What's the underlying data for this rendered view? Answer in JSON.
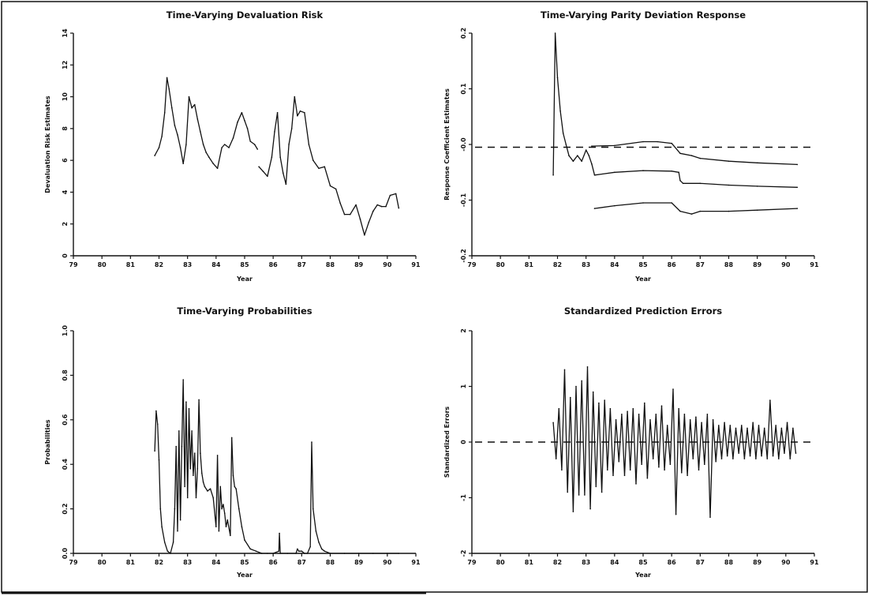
{
  "chart_data": [
    {
      "type": "line",
      "title": "Time-Varying Devaluation Risk",
      "xlabel": "Year",
      "ylabel": "Devaluation Risk Estimates",
      "xlim": [
        79,
        91
      ],
      "ylim": [
        0,
        14
      ],
      "xticks": [
        "79",
        "80",
        "81",
        "82",
        "83",
        "84",
        "85",
        "86",
        "87",
        "88",
        "89",
        "90",
        "91"
      ],
      "yticks": [
        "0",
        "2",
        "4",
        "6",
        "8",
        "10",
        "12",
        "14"
      ],
      "series": [
        {
          "x": [
            81.85,
            82.0,
            82.1,
            82.2,
            82.28,
            82.35,
            82.45,
            82.55,
            82.65,
            82.75,
            82.85,
            82.95,
            83.05,
            83.15,
            83.25,
            83.35,
            83.45,
            83.55,
            83.65,
            83.75,
            83.9,
            84.05,
            84.2,
            84.3,
            84.45,
            84.6,
            84.75,
            84.9,
            85.0,
            85.1,
            85.2,
            85.35,
            85.45
          ],
          "y": [
            6.3,
            6.8,
            7.5,
            9.0,
            11.2,
            10.5,
            9.3,
            8.2,
            7.6,
            6.8,
            5.8,
            7.0,
            10.0,
            9.3,
            9.5,
            8.6,
            7.8,
            7.0,
            6.5,
            6.2,
            5.8,
            5.5,
            6.8,
            7.0,
            6.8,
            7.4,
            8.4,
            9.0,
            8.5,
            8.0,
            7.2,
            7.0,
            6.7
          ]
        },
        {
          "x": [
            85.5,
            85.65,
            85.8,
            85.95,
            86.05,
            86.15,
            86.25,
            86.35,
            86.45,
            86.55,
            86.65,
            86.75,
            86.85,
            86.95,
            87.1,
            87.25,
            87.4,
            87.6,
            87.8,
            88.0,
            88.2,
            88.35,
            88.5,
            88.7,
            88.9,
            89.05,
            89.2,
            89.35,
            89.5,
            89.65,
            89.8,
            89.95,
            90.1,
            90.3,
            90.4
          ],
          "y": [
            5.6,
            5.3,
            5.0,
            6.2,
            7.8,
            9.0,
            6.2,
            5.2,
            4.5,
            7.0,
            8.0,
            10.0,
            8.8,
            9.1,
            9.0,
            7.0,
            6.0,
            5.5,
            5.6,
            4.4,
            4.2,
            3.3,
            2.6,
            2.6,
            3.2,
            2.3,
            1.3,
            2.1,
            2.8,
            3.2,
            3.1,
            3.1,
            3.8,
            3.9,
            3.0
          ]
        }
      ]
    },
    {
      "type": "line",
      "title": "Time-Varying Parity Deviation Response",
      "xlabel": "Year",
      "ylabel": "Response Coefficient Estimates",
      "xlim": [
        79,
        91
      ],
      "ylim": [
        -0.2,
        0.2
      ],
      "xticks": [
        "79",
        "80",
        "81",
        "82",
        "83",
        "84",
        "85",
        "86",
        "87",
        "88",
        "89",
        "90",
        "91"
      ],
      "yticks": [
        "-0.2",
        "-0.1",
        "-0.0",
        "0.1",
        "0.2"
      ],
      "reference_line_y": -0.005,
      "series": [
        {
          "x": [
            81.85,
            81.92,
            82.0,
            82.1,
            82.2,
            82.3,
            82.4,
            82.55,
            82.7,
            82.85,
            83.0,
            83.1,
            83.2,
            83.3,
            84.0,
            85.0,
            86.0,
            86.25,
            86.3,
            86.4,
            87.0,
            88.0,
            89.0,
            90.4
          ],
          "y": [
            -0.055,
            0.2,
            0.12,
            0.06,
            0.02,
            0.0,
            -0.02,
            -0.03,
            -0.02,
            -0.03,
            -0.01,
            -0.02,
            -0.035,
            -0.055,
            -0.05,
            -0.047,
            -0.048,
            -0.05,
            -0.065,
            -0.07,
            -0.07,
            -0.073,
            -0.075,
            -0.077
          ]
        },
        {
          "x": [
            83.2,
            84.0,
            85.0,
            85.5,
            86.0,
            86.3,
            86.7,
            87.0,
            88.0,
            89.0,
            90.4
          ],
          "y": [
            -0.003,
            -0.002,
            0.005,
            0.005,
            0.002,
            -0.016,
            -0.02,
            -0.025,
            -0.03,
            -0.033,
            -0.036
          ]
        },
        {
          "x": [
            83.3,
            84.0,
            85.0,
            86.0,
            86.3,
            86.7,
            87.0,
            88.0,
            89.0,
            90.4
          ],
          "y": [
            -0.115,
            -0.11,
            -0.105,
            -0.105,
            -0.12,
            -0.125,
            -0.12,
            -0.12,
            -0.118,
            -0.115
          ]
        }
      ]
    },
    {
      "type": "line",
      "title": "Time-Varying Probabilities",
      "xlabel": "Year",
      "ylabel": "Probabilities",
      "xlim": [
        79,
        91
      ],
      "ylim": [
        0,
        1.0
      ],
      "xticks": [
        "79",
        "80",
        "81",
        "82",
        "83",
        "84",
        "85",
        "86",
        "87",
        "88",
        "89",
        "90",
        "91"
      ],
      "yticks": [
        "0.0",
        "0.2",
        "0.4",
        "0.6",
        "0.8",
        "1.0"
      ],
      "series": [
        {
          "x": [
            81.85,
            81.9,
            81.95,
            82.0,
            82.05,
            82.1,
            82.2,
            82.3,
            82.4,
            82.5,
            82.55,
            82.6,
            82.65,
            82.7,
            82.75,
            82.8,
            82.85,
            82.9,
            82.95,
            83.0,
            83.05,
            83.1,
            83.15,
            83.2,
            83.25,
            83.3,
            83.35,
            83.4,
            83.45,
            83.5,
            83.55,
            83.6,
            83.7,
            83.8,
            83.9,
            84.0,
            84.05,
            84.1,
            84.15,
            84.2,
            84.25,
            84.3,
            84.35,
            84.4,
            84.5,
            84.55,
            84.6,
            84.65,
            84.7,
            84.8,
            84.9,
            85.0,
            85.2,
            85.4,
            85.6,
            85.8,
            86.0,
            86.2,
            86.22,
            86.25,
            86.5,
            86.8,
            86.85,
            86.9,
            87.0,
            87.1,
            87.2,
            87.3,
            87.35,
            87.4,
            87.5,
            87.6,
            87.7,
            87.8,
            88.0,
            88.5,
            89.0,
            89.5,
            90.0,
            90.4
          ],
          "y": [
            0.46,
            0.64,
            0.58,
            0.42,
            0.2,
            0.12,
            0.05,
            0.01,
            0.0,
            0.05,
            0.2,
            0.48,
            0.1,
            0.55,
            0.15,
            0.48,
            0.78,
            0.3,
            0.68,
            0.25,
            0.65,
            0.38,
            0.55,
            0.35,
            0.45,
            0.25,
            0.38,
            0.69,
            0.45,
            0.36,
            0.32,
            0.3,
            0.28,
            0.29,
            0.25,
            0.12,
            0.44,
            0.1,
            0.3,
            0.2,
            0.22,
            0.18,
            0.12,
            0.15,
            0.08,
            0.52,
            0.35,
            0.3,
            0.29,
            0.2,
            0.12,
            0.06,
            0.02,
            0.01,
            0.0,
            0.0,
            0.0,
            0.01,
            0.09,
            0.0,
            0.0,
            0.0,
            0.02,
            0.01,
            0.01,
            0.0,
            0.0,
            0.03,
            0.5,
            0.2,
            0.1,
            0.05,
            0.02,
            0.01,
            0.0,
            0.0,
            0.0,
            0.0,
            0.0,
            0.0
          ]
        }
      ]
    },
    {
      "type": "line",
      "title": "Standardized Prediction Errors",
      "xlabel": "Year",
      "ylabel": "Standardized Errors",
      "xlim": [
        79,
        91
      ],
      "ylim": [
        -2,
        2
      ],
      "xticks": [
        "79",
        "80",
        "81",
        "82",
        "83",
        "84",
        "85",
        "86",
        "87",
        "88",
        "89",
        "90",
        "91"
      ],
      "yticks": [
        "-2",
        "-1",
        "0",
        "1",
        "2"
      ],
      "reference_line_y": 0,
      "series": [
        {
          "x": [
            81.85,
            81.95,
            82.05,
            82.15,
            82.25,
            82.35,
            82.45,
            82.55,
            82.65,
            82.75,
            82.85,
            82.95,
            83.05,
            83.15,
            83.25,
            83.35,
            83.45,
            83.55,
            83.65,
            83.75,
            83.85,
            83.95,
            84.05,
            84.15,
            84.25,
            84.35,
            84.45,
            84.55,
            84.65,
            84.75,
            84.85,
            84.95,
            85.05,
            85.15,
            85.25,
            85.35,
            85.45,
            85.55,
            85.65,
            85.75,
            85.85,
            85.95,
            86.05,
            86.15,
            86.25,
            86.35,
            86.45,
            86.55,
            86.65,
            86.75,
            86.85,
            86.95,
            87.05,
            87.15,
            87.25,
            87.35,
            87.45,
            87.55,
            87.65,
            87.75,
            87.85,
            87.95,
            88.05,
            88.15,
            88.25,
            88.35,
            88.45,
            88.55,
            88.65,
            88.75,
            88.85,
            88.95,
            89.05,
            89.15,
            89.25,
            89.35,
            89.45,
            89.55,
            89.65,
            89.75,
            89.85,
            89.95,
            90.05,
            90.15,
            90.25,
            90.35
          ],
          "y": [
            0.35,
            -0.3,
            0.6,
            -0.5,
            1.3,
            -0.9,
            0.8,
            -1.25,
            1.0,
            -0.95,
            1.1,
            -0.95,
            1.35,
            -1.2,
            0.9,
            -0.8,
            0.7,
            -0.9,
            0.75,
            -0.5,
            0.6,
            -0.6,
            0.4,
            -0.35,
            0.5,
            -0.6,
            0.55,
            -0.5,
            0.6,
            -0.75,
            0.5,
            -0.4,
            0.7,
            -0.65,
            0.4,
            -0.3,
            0.5,
            -0.45,
            0.65,
            -0.5,
            0.3,
            -0.4,
            0.95,
            -1.3,
            0.6,
            -0.55,
            0.5,
            -0.6,
            0.4,
            -0.3,
            0.45,
            -0.5,
            0.35,
            -0.4,
            0.5,
            -1.35,
            0.4,
            -0.35,
            0.3,
            -0.3,
            0.35,
            -0.25,
            0.3,
            -0.3,
            0.25,
            -0.2,
            0.3,
            -0.3,
            0.25,
            -0.25,
            0.35,
            -0.3,
            0.3,
            -0.25,
            0.25,
            -0.3,
            0.75,
            -0.25,
            0.3,
            -0.3,
            0.25,
            -0.2,
            0.35,
            -0.3,
            0.25,
            -0.2
          ]
        }
      ]
    }
  ]
}
